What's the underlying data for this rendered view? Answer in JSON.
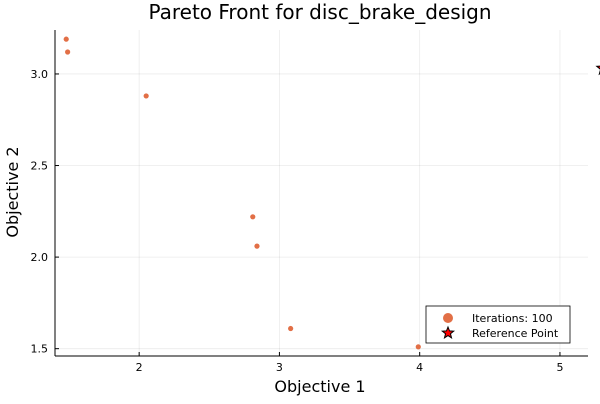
{
  "chart_data": {
    "type": "scatter",
    "title": "Pareto Front for disc_brake_design",
    "xlabel": "Objective 1",
    "ylabel": "Objective 2",
    "xlim": [
      1.4,
      5.2
    ],
    "ylim": [
      1.46,
      3.24
    ],
    "grid": true,
    "legend_position": "bottom-right",
    "xticks": [
      {
        "value": 2,
        "label": "2"
      },
      {
        "value": 3,
        "label": "3"
      },
      {
        "value": 4,
        "label": "4"
      },
      {
        "value": 5,
        "label": "5"
      }
    ],
    "yticks": [
      {
        "value": 1.5,
        "label": "1.5"
      },
      {
        "value": 2.0,
        "label": "2.0"
      },
      {
        "value": 2.5,
        "label": "2.5"
      },
      {
        "value": 3.0,
        "label": "3.0"
      }
    ],
    "series": [
      {
        "name": "Iterations: 100",
        "marker": "circle",
        "color": "#e26f46",
        "points": [
          {
            "x": 1.48,
            "y": 3.19
          },
          {
            "x": 1.49,
            "y": 3.12
          },
          {
            "x": 2.05,
            "y": 2.88
          },
          {
            "x": 2.81,
            "y": 2.22
          },
          {
            "x": 2.84,
            "y": 2.06
          },
          {
            "x": 3.08,
            "y": 1.61
          },
          {
            "x": 3.99,
            "y": 1.51
          }
        ]
      },
      {
        "name": "Reference Point",
        "marker": "star",
        "color": "#ff0000",
        "points": [
          {
            "x": 5.31,
            "y": 3.03
          }
        ]
      }
    ]
  }
}
